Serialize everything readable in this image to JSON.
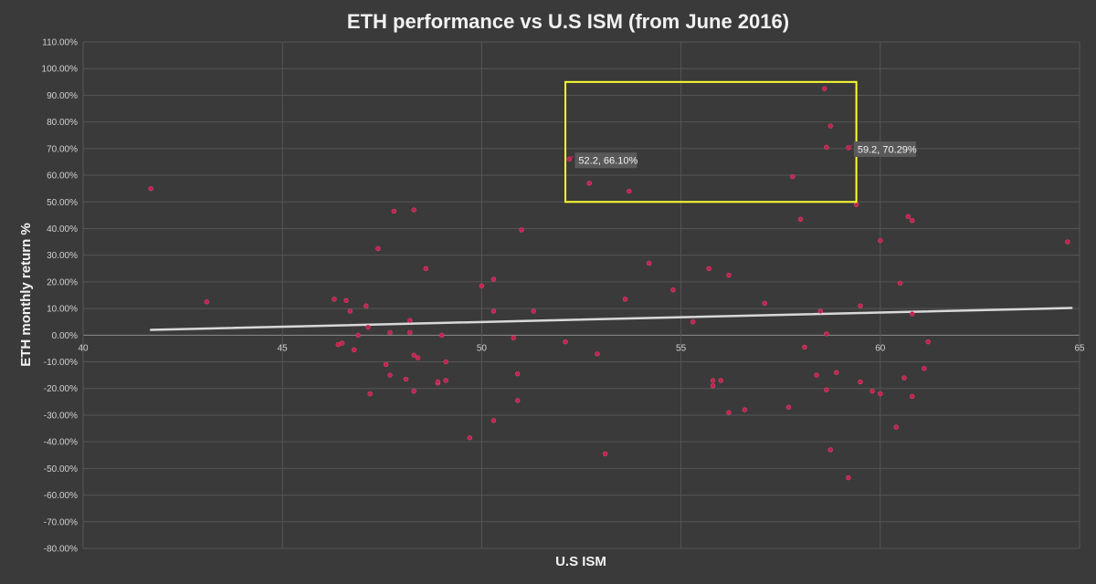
{
  "chart_data": {
    "type": "scatter",
    "title": "ETH performance vs U.S ISM (from June 2016)",
    "xlabel": "U.S ISM",
    "ylabel": "ETH monthly return %",
    "xlim": [
      40,
      65
    ],
    "ylim": [
      -80,
      110
    ],
    "x_ticks": [
      40,
      45,
      50,
      55,
      60,
      65
    ],
    "y_ticks": [
      110,
      100,
      90,
      80,
      70,
      60,
      50,
      40,
      30,
      20,
      10,
      0,
      -10,
      -20,
      -30,
      -40,
      -50,
      -60,
      -70,
      -80
    ],
    "y_tick_format": "percent_2dp",
    "grid": true,
    "legend": "none",
    "series": [
      {
        "color": "#c0244e",
        "points": [
          [
            41.7,
            55
          ],
          [
            43.1,
            12.5
          ],
          [
            46.3,
            13.5
          ],
          [
            46.4,
            -3.5
          ],
          [
            46.5,
            -3
          ],
          [
            46.6,
            13
          ],
          [
            46.7,
            9
          ],
          [
            46.8,
            -5.5
          ],
          [
            46.9,
            0
          ],
          [
            47.1,
            11
          ],
          [
            47.15,
            3
          ],
          [
            47.2,
            -22
          ],
          [
            47.4,
            32.5
          ],
          [
            47.6,
            -11
          ],
          [
            47.7,
            -15
          ],
          [
            47.7,
            1
          ],
          [
            47.8,
            46.5
          ],
          [
            48.1,
            -16.5
          ],
          [
            48.2,
            5.5
          ],
          [
            48.2,
            1
          ],
          [
            48.3,
            47
          ],
          [
            48.3,
            -21
          ],
          [
            48.3,
            -7.5
          ],
          [
            48.4,
            -8.5
          ],
          [
            48.6,
            25
          ],
          [
            48.9,
            -18
          ],
          [
            48.9,
            -17.5
          ],
          [
            49.0,
            0
          ],
          [
            49.1,
            -10
          ],
          [
            49.1,
            -17
          ],
          [
            49.7,
            -38.5
          ],
          [
            50.0,
            18.5
          ],
          [
            50.3,
            21
          ],
          [
            50.3,
            9
          ],
          [
            50.3,
            -32
          ],
          [
            50.8,
            -1
          ],
          [
            50.9,
            -14.5
          ],
          [
            50.9,
            -24.5
          ],
          [
            51.0,
            39.5
          ],
          [
            51.3,
            9
          ],
          [
            52.1,
            -2.5
          ],
          [
            52.2,
            66.1
          ],
          [
            52.7,
            57
          ],
          [
            52.9,
            -7
          ],
          [
            53.1,
            -44.5
          ],
          [
            53.6,
            13.5
          ],
          [
            53.7,
            54
          ],
          [
            54.2,
            27
          ],
          [
            54.8,
            17
          ],
          [
            55.3,
            5
          ],
          [
            55.7,
            25
          ],
          [
            55.8,
            -17
          ],
          [
            55.8,
            -19
          ],
          [
            56.0,
            -17
          ],
          [
            56.2,
            22.5
          ],
          [
            56.2,
            -29
          ],
          [
            56.6,
            -28
          ],
          [
            57.1,
            12
          ],
          [
            57.7,
            -27
          ],
          [
            57.8,
            59.5
          ],
          [
            58.0,
            43.5
          ],
          [
            58.1,
            -4.5
          ],
          [
            58.4,
            -15
          ],
          [
            58.5,
            9
          ],
          [
            58.6,
            92.5
          ],
          [
            58.65,
            70.5
          ],
          [
            58.65,
            0.5
          ],
          [
            58.65,
            -20.5
          ],
          [
            58.75,
            78.5
          ],
          [
            58.75,
            -43
          ],
          [
            58.9,
            -14
          ],
          [
            59.2,
            70.29
          ],
          [
            59.2,
            -53.5
          ],
          [
            59.4,
            49
          ],
          [
            59.5,
            11
          ],
          [
            59.5,
            -17.5
          ],
          [
            59.8,
            -21
          ],
          [
            60.0,
            35.5
          ],
          [
            60.0,
            -22
          ],
          [
            60.4,
            -34.5
          ],
          [
            60.5,
            19.5
          ],
          [
            60.6,
            -16
          ],
          [
            60.7,
            44.5
          ],
          [
            60.8,
            43
          ],
          [
            60.8,
            8
          ],
          [
            60.8,
            -23
          ],
          [
            61.1,
            -12.5
          ],
          [
            61.2,
            -2.5
          ],
          [
            64.7,
            35
          ]
        ]
      }
    ],
    "trendline": {
      "type": "linear",
      "from": [
        41.7,
        2
      ],
      "to": [
        64.8,
        10.2
      ],
      "color": "#d9d9d9"
    },
    "annotations": [
      {
        "text": "52.2, 66.10%",
        "x": 52.2,
        "y": 66.1,
        "side": "right"
      },
      {
        "text": "59.2, 70.29%",
        "x": 59.2,
        "y": 70.29,
        "side": "right"
      }
    ],
    "highlight_region": {
      "x_range": [
        52.1,
        59.4
      ],
      "y_range": [
        50,
        95
      ],
      "color": "#ffff33"
    }
  }
}
